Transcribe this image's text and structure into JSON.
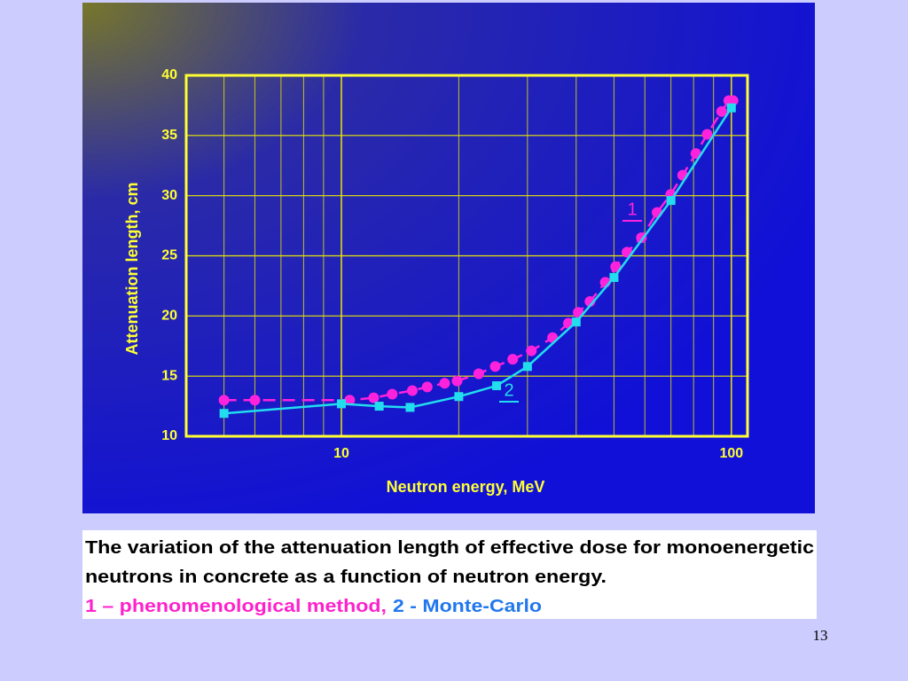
{
  "chart_data": {
    "type": "line",
    "x_label": "Neutron energy, MeV",
    "y_label": "Attenuation length, cm",
    "xlog": true,
    "xlim": [
      4,
      110
    ],
    "ylim": [
      10,
      40
    ],
    "xticks": [
      10,
      100
    ],
    "xminor_ticks": [
      5,
      6,
      7,
      8,
      9,
      20,
      30,
      40,
      50,
      60,
      70,
      80,
      90
    ],
    "yticks": [
      10,
      15,
      20,
      25,
      30,
      35,
      40
    ],
    "grid": true,
    "series": [
      {
        "name": "1",
        "color": "#ff22dd",
        "x": [
          5,
          6,
          10.5,
          12.1,
          13.5,
          15.2,
          16.6,
          18.4,
          19.8,
          22.5,
          24.8,
          27.5,
          30.7,
          34.8,
          38.2,
          40.5,
          43.4,
          47.5,
          50.5,
          54,
          58.8,
          64.5,
          69.9,
          75,
          81.1,
          86.7,
          94.4,
          98.5,
          101
        ],
        "values": [
          13.0,
          13.0,
          13.0,
          13.2,
          13.5,
          13.8,
          14.1,
          14.4,
          14.6,
          15.2,
          15.8,
          16.4,
          17.1,
          18.2,
          19.4,
          20.3,
          21.2,
          22.8,
          24.1,
          25.3,
          26.5,
          28.6,
          30.1,
          31.7,
          33.5,
          35.1,
          37.0,
          37.9,
          37.9
        ]
      },
      {
        "name": "2",
        "color": "#22ddee",
        "x": [
          5,
          10,
          12.5,
          15,
          20,
          25,
          30,
          40,
          50,
          70,
          100
        ],
        "values": [
          11.9,
          12.7,
          12.5,
          12.4,
          13.3,
          14.2,
          15.8,
          19.5,
          23.2,
          29.6,
          37.3
        ]
      }
    ]
  },
  "caption": {
    "line1": "The variation of the attenuation length of effective dose for monoenergetic",
    "line2": "neutrons in concrete as a function of neutron energy.",
    "legend1": "1 – phenomenological method,",
    "legend2": "2 - Monte-Carlo"
  },
  "page_number": "13"
}
